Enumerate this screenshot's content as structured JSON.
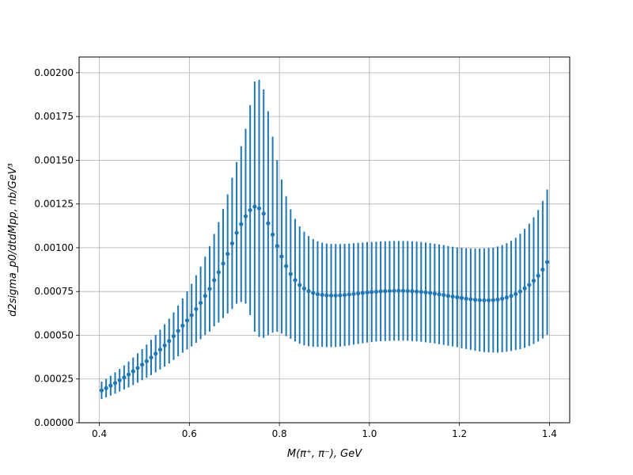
{
  "chart_data": {
    "type": "scatter",
    "title": "",
    "xlabel": "M(π⁺, π⁻), GeV",
    "ylabel": "d2sigma_p0/dtdMpp, nb/GeV³",
    "xlim": [
      0.355,
      1.445
    ],
    "ylim": [
      0.0,
      0.00209
    ],
    "grid": true,
    "x_ticks": [
      {
        "value": 0.4,
        "label": "0.4"
      },
      {
        "value": 0.6,
        "label": "0.6"
      },
      {
        "value": 0.8,
        "label": "0.8"
      },
      {
        "value": 1.0,
        "label": "1.0"
      },
      {
        "value": 1.2,
        "label": "1.2"
      },
      {
        "value": 1.4,
        "label": "1.4"
      }
    ],
    "y_ticks": [
      {
        "value": 0.0,
        "label": "0.00000"
      },
      {
        "value": 0.00025,
        "label": "0.00025"
      },
      {
        "value": 0.0005,
        "label": "0.00050"
      },
      {
        "value": 0.00075,
        "label": "0.00075"
      },
      {
        "value": 0.001,
        "label": "0.00100"
      },
      {
        "value": 0.00125,
        "label": "0.00125"
      },
      {
        "value": 0.0015,
        "label": "0.00150"
      },
      {
        "value": 0.00175,
        "label": "0.00175"
      },
      {
        "value": 0.002,
        "label": "0.00200"
      }
    ],
    "series": [
      {
        "color": "#1f77b4",
        "x": [
          0.405,
          0.415,
          0.425,
          0.435,
          0.445,
          0.455,
          0.465,
          0.475,
          0.485,
          0.495,
          0.505,
          0.515,
          0.525,
          0.535,
          0.545,
          0.555,
          0.565,
          0.575,
          0.585,
          0.595,
          0.605,
          0.615,
          0.625,
          0.635,
          0.645,
          0.655,
          0.665,
          0.675,
          0.685,
          0.695,
          0.705,
          0.715,
          0.725,
          0.735,
          0.745,
          0.755,
          0.765,
          0.775,
          0.785,
          0.795,
          0.805,
          0.815,
          0.825,
          0.835,
          0.845,
          0.855,
          0.865,
          0.875,
          0.885,
          0.895,
          0.905,
          0.915,
          0.925,
          0.935,
          0.945,
          0.955,
          0.965,
          0.975,
          0.985,
          0.995,
          1.005,
          1.015,
          1.025,
          1.035,
          1.045,
          1.055,
          1.065,
          1.075,
          1.085,
          1.095,
          1.105,
          1.115,
          1.125,
          1.135,
          1.145,
          1.155,
          1.165,
          1.175,
          1.185,
          1.195,
          1.205,
          1.215,
          1.225,
          1.235,
          1.245,
          1.255,
          1.265,
          1.275,
          1.285,
          1.295,
          1.305,
          1.315,
          1.325,
          1.335,
          1.345,
          1.355,
          1.365,
          1.375,
          1.385,
          1.395
        ],
        "y": [
          0.000185,
          0.000198,
          0.000212,
          0.000227,
          0.000243,
          0.000259,
          0.000276,
          0.000294,
          0.000313,
          0.000332,
          0.000352,
          0.000373,
          0.000395,
          0.000418,
          0.000442,
          0.000467,
          0.000495,
          0.000525,
          0.000555,
          0.000585,
          0.000615,
          0.00065,
          0.000685,
          0.000725,
          0.000765,
          0.000815,
          0.00086,
          0.00091,
          0.000965,
          0.001025,
          0.001085,
          0.001135,
          0.00118,
          0.001215,
          0.001235,
          0.001225,
          0.001195,
          0.00114,
          0.001075,
          0.00101,
          0.00095,
          0.000895,
          0.00085,
          0.000815,
          0.000787,
          0.000767,
          0.000752,
          0.000742,
          0.000735,
          0.000731,
          0.000728,
          0.000727,
          0.000727,
          0.000728,
          0.00073,
          0.000733,
          0.000736,
          0.000739,
          0.000742,
          0.000745,
          0.000747,
          0.000749,
          0.000751,
          0.000752,
          0.000753,
          0.000754,
          0.000754,
          0.000754,
          0.000753,
          0.000752,
          0.00075,
          0.000748,
          0.000745,
          0.000742,
          0.000738,
          0.000734,
          0.00073,
          0.000725,
          0.000721,
          0.000717,
          0.000713,
          0.000709,
          0.000706,
          0.000703,
          0.000701,
          0.0007,
          0.0007,
          0.000701,
          0.000704,
          0.000709,
          0.000716,
          0.000725,
          0.000736,
          0.00075,
          0.000768,
          0.000788,
          0.000812,
          0.00084,
          0.000875,
          0.000918
        ],
        "yerr": [
          5e-05,
          5.3e-05,
          5.7e-05,
          6.1e-05,
          6.5e-05,
          6.9e-05,
          7.4e-05,
          7.9e-05,
          8.4e-05,
          8.9e-05,
          9.5e-05,
          0.000101,
          0.000107,
          0.000114,
          0.000121,
          0.000128,
          0.000136,
          0.000145,
          0.000155,
          0.000166,
          0.000179,
          0.000193,
          0.000208,
          0.000224,
          0.000244,
          0.000264,
          0.000287,
          0.000312,
          0.00034,
          0.000375,
          0.000405,
          0.000445,
          0.0005,
          0.0006,
          0.000715,
          0.000735,
          0.00071,
          0.00064,
          0.00056,
          0.00049,
          0.00044,
          0.0004,
          0.00037,
          0.00035,
          0.000335,
          0.000325,
          0.000315,
          0.000308,
          0.000302,
          0.000298,
          0.000296,
          0.000295,
          0.000294,
          0.000293,
          0.000292,
          0.000291,
          0.00029,
          0.000289,
          0.000288,
          0.000287,
          0.000286,
          0.000285,
          0.000285,
          0.000285,
          0.000285,
          0.000285,
          0.000285,
          0.000285,
          0.000285,
          0.000285,
          0.000285,
          0.000285,
          0.000285,
          0.000285,
          0.000285,
          0.000285,
          0.000285,
          0.000285,
          0.000285,
          0.000285,
          0.000287,
          0.000288,
          0.00029,
          0.000292,
          0.000294,
          0.000296,
          0.000298,
          0.0003,
          0.000303,
          0.000306,
          0.00031,
          0.000315,
          0.000321,
          0.00033,
          0.00034,
          0.00035,
          0.000362,
          0.000376,
          0.000393,
          0.000415
        ]
      }
    ]
  }
}
